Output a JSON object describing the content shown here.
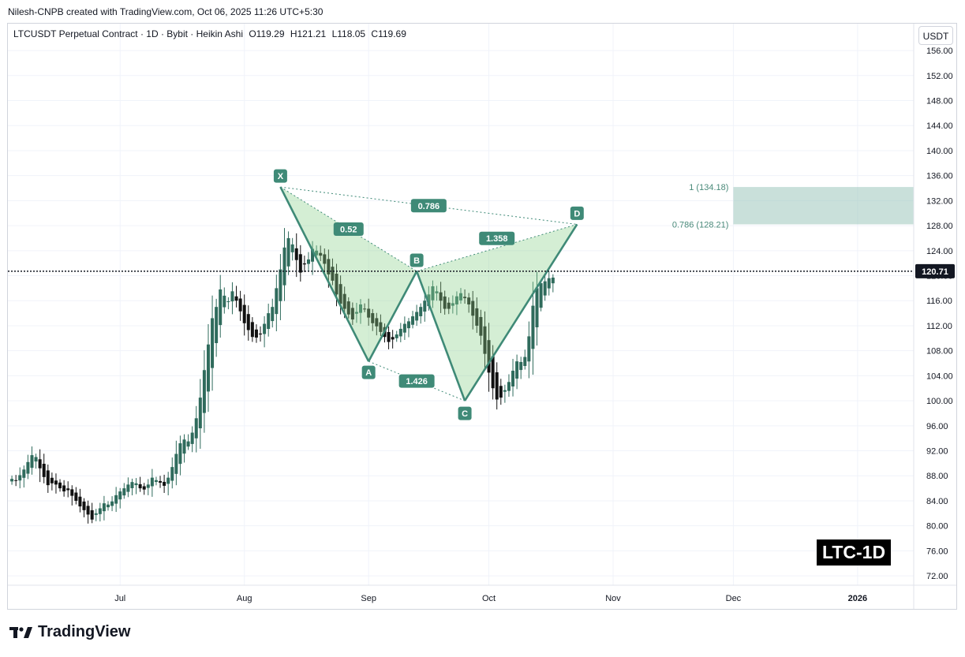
{
  "header": {
    "credit": "Nilesh-CNPB created with TradingView.com, Oct 06, 2025 11:26 UTC+5:30",
    "symbol": "LTCUSDT Perpetual Contract · 1D · Bybit · Heikin Ashi",
    "ohlc": {
      "o": "O119.29",
      "h": "H121.21",
      "l": "L118.05",
      "c": "C119.69"
    },
    "currency": "USDT"
  },
  "badge": "LTC-1D",
  "brand": {
    "name": "TradingView",
    "icon": "tradingview-logo-icon"
  },
  "colors": {
    "up": "#2f6b5c",
    "down": "#111111",
    "pattern_fill": "#8fd18f",
    "pattern_line": "#3f8a77",
    "label_bg": "#3f8a77",
    "prz_fill": "#9cc7bc",
    "prz_text": "#4a8a7a"
  },
  "chart_data": {
    "type": "candlestick",
    "title": "",
    "y_axis": {
      "min": 70.5,
      "max": 160.3,
      "ticks": [
        "156.00",
        "152.00",
        "148.00",
        "144.00",
        "140.00",
        "136.00",
        "132.00",
        "128.00",
        "124.00",
        "120.00",
        "116.00",
        "112.00",
        "108.00",
        "104.00",
        "100.00",
        "96.00",
        "92.00",
        "88.00",
        "84.00",
        "80.00",
        "76.00",
        "72.00"
      ]
    },
    "x_axis": {
      "start": "2025-06-03",
      "end": "2026-01-15",
      "ticks": [
        {
          "label": "Jul",
          "date": "2025-07-01"
        },
        {
          "label": "Aug",
          "date": "2025-08-01"
        },
        {
          "label": "Sep",
          "date": "2025-09-01"
        },
        {
          "label": "Oct",
          "date": "2025-10-01"
        },
        {
          "label": "Nov",
          "date": "2025-11-01"
        },
        {
          "label": "Dec",
          "date": "2025-12-01"
        },
        {
          "label": "2026",
          "date": "2026-01-01"
        }
      ]
    },
    "last_price": {
      "value": 120.71,
      "label": "120.71"
    },
    "closes": [
      87.5,
      87.2,
      88.1,
      89.0,
      90.2,
      91.3,
      91.0,
      89.2,
      87.8,
      86.5,
      86.8,
      86.6,
      86.0,
      85.5,
      85.7,
      84.8,
      84.0,
      83.1,
      82.5,
      81.8,
      81.0,
      82.0,
      82.8,
      83.6,
      83.4,
      83.9,
      84.9,
      85.5,
      86.0,
      86.6,
      87.0,
      86.8,
      86.0,
      85.8,
      86.6,
      87.7,
      87.3,
      86.9,
      86.4,
      87.7,
      89.4,
      91.5,
      93.2,
      93.8,
      93.5,
      94.9,
      97.2,
      100.5,
      104.9,
      109.0,
      113.2,
      115.0,
      117.8,
      116.8,
      115.9,
      117.5,
      116.0,
      114.3,
      112.4,
      111.3,
      110.2,
      110.1,
      110.6,
      112.3,
      114.0,
      115.0,
      118.0,
      121.0,
      124.5,
      126.0,
      125.0,
      122.5,
      120.5,
      121.8,
      122.6,
      124.3,
      124.0,
      123.2,
      121.9,
      120.2,
      119.2,
      117.0,
      115.5,
      114.7,
      113.8,
      113.0,
      114.2,
      115.4,
      114.7,
      113.3,
      112.4,
      111.9,
      111.0,
      110.2,
      109.4,
      109.8,
      110.6,
      111.5,
      112.3,
      112.7,
      113.5,
      114.2,
      115.0,
      116.0,
      117.0,
      118.3,
      117.5,
      116.0,
      114.7,
      114.7,
      115.6,
      116.7,
      117.2,
      116.4,
      115.4,
      113.6,
      112.0,
      110.4,
      107.5,
      104.5,
      102.0,
      100.2,
      100.5,
      101.7,
      103.0,
      104.8,
      106.3,
      106.2,
      107.0,
      110.3,
      115.2,
      118.0,
      118.8,
      119.1,
      119.6,
      119.69
    ],
    "harmonic_pattern": {
      "points": [
        {
          "label": "X",
          "date": "2025-08-10",
          "price": 134.18
        },
        {
          "label": "A",
          "date": "2025-09-01",
          "price": 106.3
        },
        {
          "label": "B",
          "date": "2025-09-13",
          "price": 120.7
        },
        {
          "label": "C",
          "date": "2025-09-25",
          "price": 100.0
        },
        {
          "label": "D",
          "date": "2025-10-23",
          "price": 128.21
        }
      ],
      "ratios": [
        {
          "text": "0.52",
          "between": "XB"
        },
        {
          "text": "1.426",
          "between": "AC"
        },
        {
          "text": "1.358",
          "between": "BD"
        },
        {
          "text": "0.786",
          "between": "XD"
        }
      ]
    },
    "prz": {
      "start_date": "2025-12-01",
      "end_date": "2026-01-15",
      "low": 128.21,
      "high": 134.18,
      "labels": [
        "1 (134.18)",
        "0.786 (128.21)"
      ]
    }
  }
}
